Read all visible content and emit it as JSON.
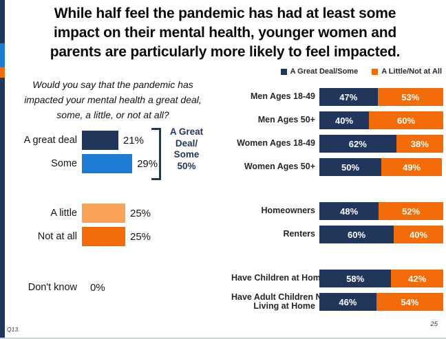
{
  "colors": {
    "navy": "#21365b",
    "blue": "#1e7cd2",
    "orange": "#f26c0a",
    "orange_light": "#f9a35a"
  },
  "slide": {
    "footnote": "Q13.",
    "page_number": "25"
  },
  "title": {
    "line1": "While half feel the pandemic has had at least some",
    "line2": "impact on their mental health, younger women and",
    "line3": "parents are particularly more likely to feel impacted."
  },
  "left_chart": {
    "question": "Would you say that the pandemic has impacted your mental health a great deal, some, a little, or not at all?",
    "annotation_lines": [
      "A Great",
      "Deal/",
      "Some",
      "50%"
    ]
  },
  "display": {
    "row8_label_lines": [
      "Have Adult Children Not",
      "Living at Home"
    ]
  },
  "chart_data": [
    {
      "type": "bar",
      "orientation": "horizontal",
      "title": "Would you say that the pandemic has impacted your mental health a great deal, some, a little, or not at all?",
      "categories": [
        "A great deal",
        "Some",
        "A little",
        "Not at all",
        "Don't know"
      ],
      "values": [
        21,
        29,
        25,
        25,
        0
      ],
      "value_format": "percent",
      "bar_colors": [
        "navy",
        "blue",
        "orange_light",
        "orange",
        "none"
      ],
      "annotation": "A Great Deal/Some 50%",
      "grid": false
    },
    {
      "type": "bar",
      "subtype": "stacked",
      "orientation": "horizontal",
      "xlim": [
        0,
        100
      ],
      "legend_position": "top",
      "grid": false,
      "categories": [
        "Men Ages 18-49",
        "Men Ages 50+",
        "Women Ages 18-49",
        "Women Ages 50+",
        "Homeowners",
        "Renters",
        "Have Children at Home",
        "Have Adult Children Not Living at Home"
      ],
      "series": [
        {
          "name": "A Great Deal/Some",
          "color": "navy",
          "values": [
            47,
            40,
            62,
            50,
            48,
            60,
            58,
            46
          ]
        },
        {
          "name": "A Little/Not at All",
          "color": "orange",
          "values": [
            53,
            60,
            38,
            49,
            52,
            40,
            42,
            54
          ]
        }
      ],
      "groups": [
        [
          "Men Ages 18-49",
          "Men Ages 50+",
          "Women Ages 18-49",
          "Women Ages 50+"
        ],
        [
          "Homeowners",
          "Renters"
        ],
        [
          "Have Children at Home",
          "Have Adult Children Not Living at Home"
        ]
      ]
    }
  ]
}
